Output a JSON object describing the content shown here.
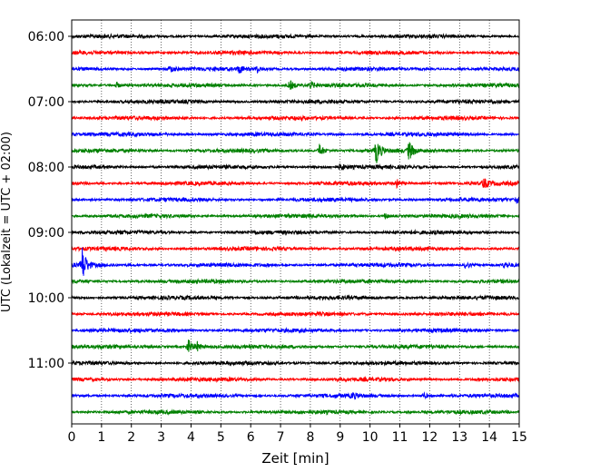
{
  "chart_data": {
    "type": "line",
    "title": "",
    "xlabel": "Zeit  [min]",
    "ylabel": "UTC (Lokalzeit = UTC + 02:00)",
    "xlim": [
      0,
      15
    ],
    "x_ticks": [
      0,
      1,
      2,
      3,
      4,
      5,
      6,
      7,
      8,
      9,
      10,
      11,
      12,
      13,
      14,
      15
    ],
    "x_tick_labels": [
      "0",
      "1",
      "2",
      "3",
      "4",
      "5",
      "6",
      "7",
      "8",
      "9",
      "10",
      "11",
      "12",
      "13",
      "14",
      "15"
    ],
    "y_ticks": [
      "06:00",
      "07:00",
      "08:00",
      "09:00",
      "10:00",
      "11:00"
    ],
    "trace_interval_minutes": 15,
    "grid": "vertical dotted",
    "legend": "none",
    "color_cycle": [
      "#000000",
      "#ff0000",
      "#0000ff",
      "#008000"
    ],
    "series": [
      {
        "start": "06:00",
        "color": "#000000",
        "events": []
      },
      {
        "start": "06:15",
        "color": "#ff0000",
        "events": []
      },
      {
        "start": "06:30",
        "color": "#0000ff",
        "events": [
          {
            "t": 3.3,
            "amp": 4
          },
          {
            "t": 5.6,
            "amp": 5
          },
          {
            "t": 6.2,
            "amp": 3.5
          }
        ]
      },
      {
        "start": "06:45",
        "color": "#008000",
        "events": [
          {
            "t": 1.5,
            "amp": 3
          },
          {
            "t": 7.3,
            "amp": 6
          },
          {
            "t": 8.0,
            "amp": 4
          }
        ]
      },
      {
        "start": "07:00",
        "color": "#000000",
        "events": []
      },
      {
        "start": "07:15",
        "color": "#ff0000",
        "events": []
      },
      {
        "start": "07:30",
        "color": "#0000ff",
        "events": []
      },
      {
        "start": "07:45",
        "color": "#008000",
        "events": [
          {
            "t": 8.3,
            "amp": 8
          },
          {
            "t": 10.2,
            "amp": 15
          },
          {
            "t": 11.3,
            "amp": 11
          }
        ]
      },
      {
        "start": "08:00",
        "color": "#000000",
        "events": [
          {
            "t": 9.0,
            "amp": 4
          }
        ]
      },
      {
        "start": "08:15",
        "color": "#ff0000",
        "events": [
          {
            "t": 10.9,
            "amp": 4
          },
          {
            "t": 13.8,
            "amp": 6
          }
        ]
      },
      {
        "start": "08:30",
        "color": "#0000ff",
        "events": [
          {
            "t": 14.9,
            "amp": 3.5
          }
        ]
      },
      {
        "start": "08:45",
        "color": "#008000",
        "events": [
          {
            "t": 10.5,
            "amp": 3
          }
        ]
      },
      {
        "start": "09:00",
        "color": "#000000",
        "events": []
      },
      {
        "start": "09:15",
        "color": "#ff0000",
        "events": []
      },
      {
        "start": "09:30",
        "color": "#0000ff",
        "events": [
          {
            "t": 0.35,
            "amp": 20
          },
          {
            "t": 13.2,
            "amp": 4
          },
          {
            "t": 14.5,
            "amp": 3
          }
        ]
      },
      {
        "start": "09:45",
        "color": "#008000",
        "events": []
      },
      {
        "start": "10:00",
        "color": "#000000",
        "events": []
      },
      {
        "start": "10:15",
        "color": "#ff0000",
        "events": []
      },
      {
        "start": "10:30",
        "color": "#0000ff",
        "events": []
      },
      {
        "start": "10:45",
        "color": "#008000",
        "events": [
          {
            "t": 3.9,
            "amp": 9
          },
          {
            "t": 4.2,
            "amp": 5
          }
        ]
      },
      {
        "start": "11:00",
        "color": "#000000",
        "events": []
      },
      {
        "start": "11:15",
        "color": "#ff0000",
        "events": []
      },
      {
        "start": "11:30",
        "color": "#0000ff",
        "events": [
          {
            "t": 9.4,
            "amp": 3.5
          },
          {
            "t": 11.8,
            "amp": 3
          }
        ]
      },
      {
        "start": "11:45",
        "color": "#008000",
        "events": []
      }
    ]
  }
}
